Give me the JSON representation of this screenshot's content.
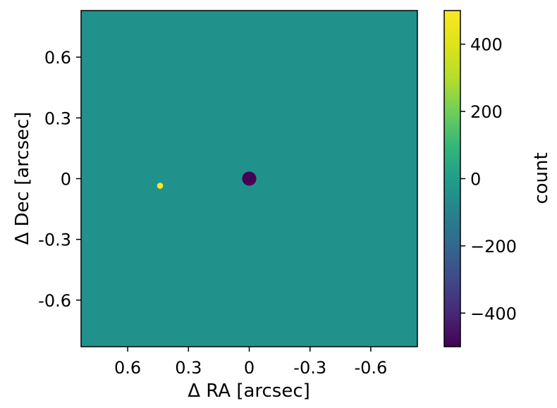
{
  "chart_data": {
    "type": "heatmap",
    "xlabel": "Δ RA [arcsec]",
    "ylabel": "Δ Dec [arcsec]",
    "xlim": [
      0.83,
      -0.83
    ],
    "ylim": [
      -0.83,
      0.83
    ],
    "x_ticks": [
      0.6,
      0.3,
      0,
      -0.3,
      -0.6
    ],
    "x_tick_labels": [
      "0.6",
      "0.3",
      "0",
      "-0.3",
      "-0.6"
    ],
    "y_ticks": [
      0.6,
      0.3,
      0,
      -0.3,
      -0.6
    ],
    "y_tick_labels": [
      "0.6",
      "0.3",
      "0",
      "-0.3",
      "-0.6"
    ],
    "background_value": 0,
    "features": [
      {
        "x": 0.44,
        "y": -0.035,
        "radius": 0.015,
        "value": 500
      },
      {
        "x": 0.0,
        "y": 0.0,
        "radius": 0.035,
        "value": -500
      }
    ],
    "colorbar": {
      "label": "count",
      "range": [
        -500,
        500
      ],
      "ticks": [
        400,
        200,
        0,
        -200,
        -400
      ],
      "tick_labels": [
        "400",
        "200",
        "0",
        "−200",
        "−400"
      ],
      "colormap": "viridis"
    },
    "colors": {
      "background": "#21918c",
      "positive": "#fde725",
      "negative": "#440154"
    }
  }
}
